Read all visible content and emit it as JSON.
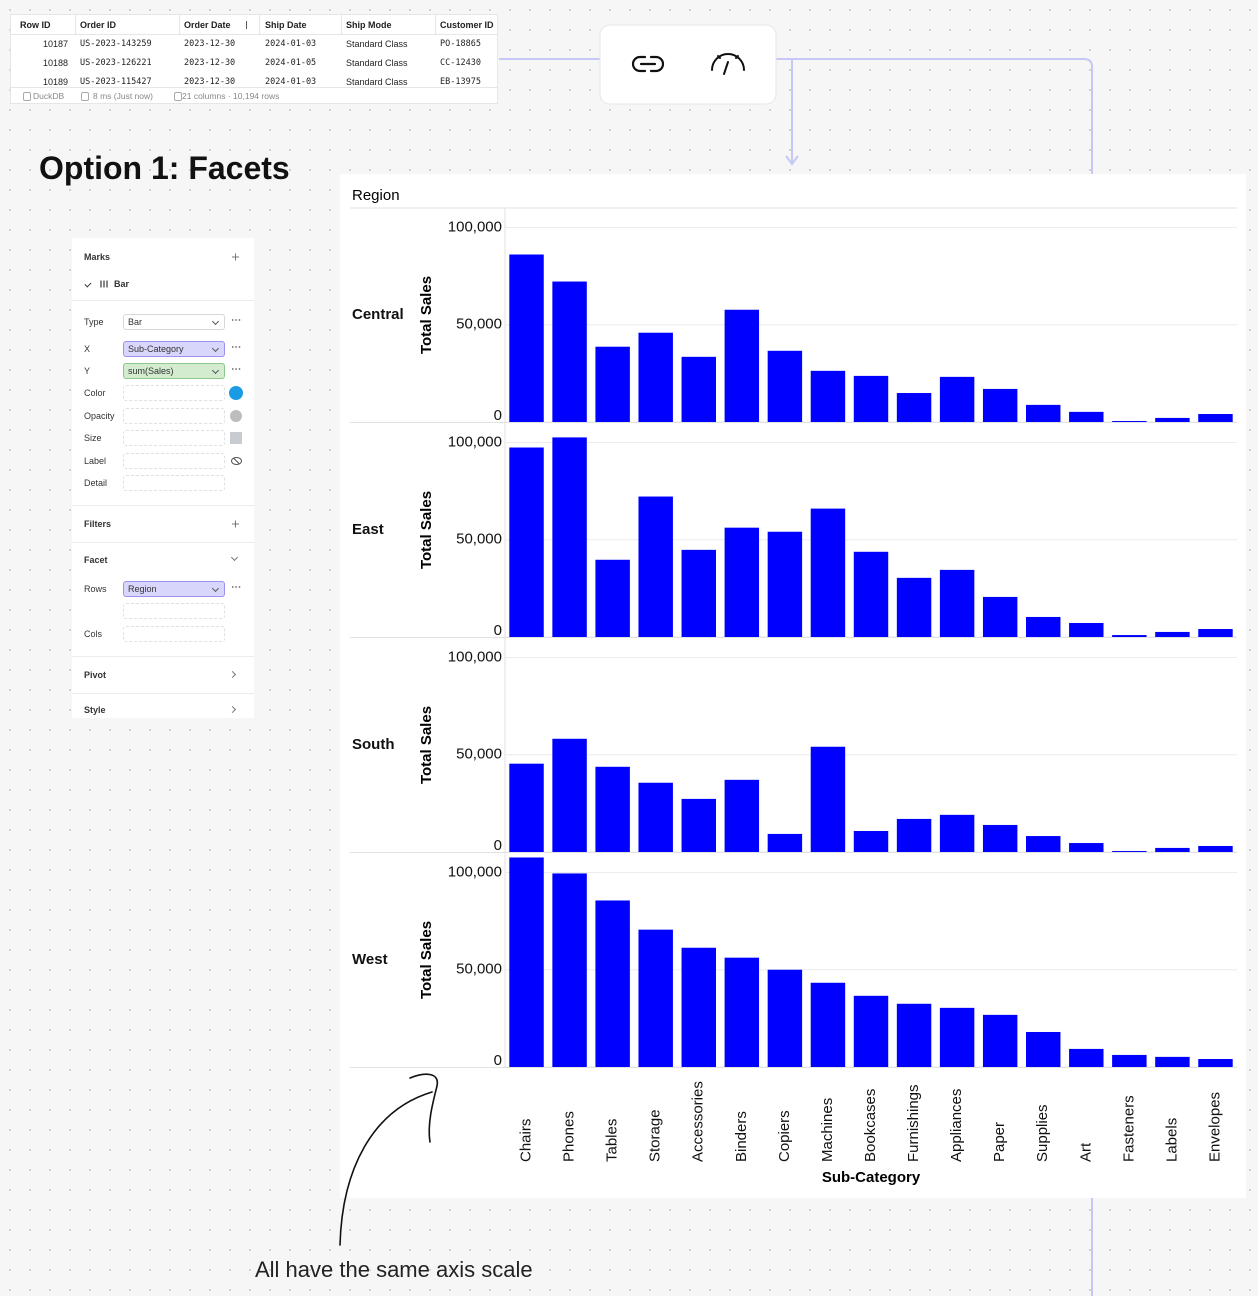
{
  "table": {
    "columns": [
      "Row ID",
      "Order ID",
      "Order Date",
      "Ship Date",
      "Ship Mode",
      "Customer ID"
    ],
    "rows": [
      [
        "10187",
        "US-2023-143259",
        "2023-12-30",
        "2024-01-03",
        "Standard Class",
        "PO-18865"
      ],
      [
        "10188",
        "US-2023-126221",
        "2023-12-30",
        "2024-01-05",
        "Standard Class",
        "CC-12430"
      ],
      [
        "10189",
        "US-2023-115427",
        "2023-12-30",
        "2024-01-03",
        "Standard Class",
        "EB-13975"
      ]
    ],
    "footer": {
      "source": "DuckDB",
      "timing": "8 ms (Just now)",
      "summary": "21 columns · 10,194 rows"
    }
  },
  "heading": "Option 1: Facets",
  "panel": {
    "marks_title": "Marks",
    "mark": "Bar",
    "fields": [
      {
        "label": "Type",
        "value": "Bar"
      },
      {
        "label": "X",
        "value": "Sub-Category"
      },
      {
        "label": "Y",
        "value": "sum(Sales)"
      },
      {
        "label": "Color"
      },
      {
        "label": "Opacity"
      },
      {
        "label": "Size"
      },
      {
        "label": "Label"
      },
      {
        "label": "Detail"
      }
    ],
    "filters_title": "Filters",
    "facet_title": "Facet",
    "rows_label": "Rows",
    "rows_value": "Region",
    "cols_label": "Cols",
    "pivot_title": "Pivot",
    "style_title": "Style"
  },
  "chart_data": {
    "type": "bar",
    "facet_title": "Region",
    "xlabel": "Sub-Category",
    "ylabel": "Total Sales",
    "color": "#0000ff",
    "categories": [
      "Chairs",
      "Phones",
      "Tables",
      "Storage",
      "Accessories",
      "Binders",
      "Copiers",
      "Machines",
      "Bookcases",
      "Furnishings",
      "Appliances",
      "Paper",
      "Supplies",
      "Art",
      "Fasteners",
      "Labels",
      "Envelopes"
    ],
    "facets": [
      {
        "name": "Central",
        "values": [
          86100,
          72200,
          38700,
          45900,
          33500,
          57700,
          36600,
          26300,
          23700,
          14900,
          23200,
          17000,
          8800,
          5200,
          500,
          2100,
          4100
        ]
      },
      {
        "name": "East",
        "values": [
          97400,
          102600,
          39700,
          72200,
          44800,
          56200,
          54100,
          66000,
          43800,
          30400,
          34500,
          20600,
          10300,
          7200,
          1000,
          2600,
          4100
        ]
      },
      {
        "name": "South",
        "values": [
          45400,
          58200,
          43800,
          35600,
          27300,
          37100,
          9300,
          54100,
          10800,
          17000,
          19100,
          13900,
          8200,
          4600,
          500,
          2100,
          3100
        ]
      },
      {
        "name": "West",
        "values": [
          107700,
          99500,
          85600,
          70600,
          61300,
          56200,
          50000,
          43300,
          36600,
          32500,
          30400,
          26800,
          18000,
          9300,
          6200,
          5200,
          4100
        ]
      }
    ],
    "ylim": [
      0,
      110000
    ],
    "yticks": [
      0,
      {
        "value": 50000,
        "label": "50,000"
      },
      {
        "value": 100000,
        "label": "100,000"
      }
    ],
    "grid": true
  },
  "annotation": "All have the same axis scale"
}
